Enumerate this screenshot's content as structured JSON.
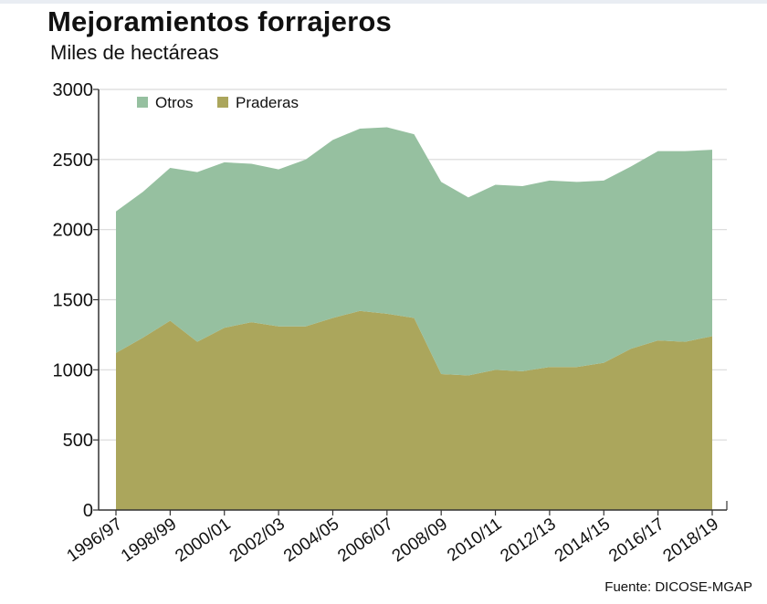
{
  "title": "Mejoramientos forrajeros",
  "subtitle": "Miles de hectáreas",
  "source": "Fuente: DICOSE-MGAP",
  "chart_data": {
    "type": "area",
    "stacked": true,
    "x": [
      "1996/97",
      "1997/98",
      "1998/99",
      "1999/00",
      "2000/01",
      "2001/02",
      "2002/03",
      "2003/04",
      "2004/05",
      "2005/06",
      "2006/07",
      "2007/08",
      "2008/09",
      "2009/10",
      "2010/11",
      "2011/12",
      "2012/13",
      "2013/14",
      "2014/15",
      "2015/16",
      "2016/17",
      "2017/18",
      "2018/19"
    ],
    "x_tick_labels": [
      "1996/97",
      "1998/99",
      "2000/01",
      "2002/03",
      "2004/05",
      "2006/07",
      "2008/09",
      "2010/11",
      "2012/13",
      "2014/15",
      "2016/17",
      "2018/19"
    ],
    "y_ticks": [
      0,
      500,
      1000,
      1500,
      2000,
      2500,
      3000
    ],
    "ylim": [
      0,
      3000
    ],
    "grid": true,
    "legend_position": "top-left",
    "series": [
      {
        "name": "Praderas",
        "color": "#aba65c",
        "values": [
          1120,
          1230,
          1350,
          1200,
          1300,
          1340,
          1310,
          1310,
          1370,
          1420,
          1400,
          1370,
          970,
          960,
          1000,
          990,
          1020,
          1020,
          1050,
          1150,
          1210,
          1200,
          1240
        ]
      },
      {
        "name": "Otros",
        "color": "#96c0a0",
        "values": [
          1010,
          1040,
          1090,
          1210,
          1180,
          1130,
          1120,
          1190,
          1270,
          1300,
          1330,
          1310,
          1370,
          1270,
          1320,
          1320,
          1330,
          1320,
          1300,
          1300,
          1350,
          1360,
          1330
        ]
      }
    ],
    "legend": [
      {
        "label": "Otros",
        "color": "#96c0a0"
      },
      {
        "label": "Praderas",
        "color": "#aba65c"
      }
    ]
  }
}
